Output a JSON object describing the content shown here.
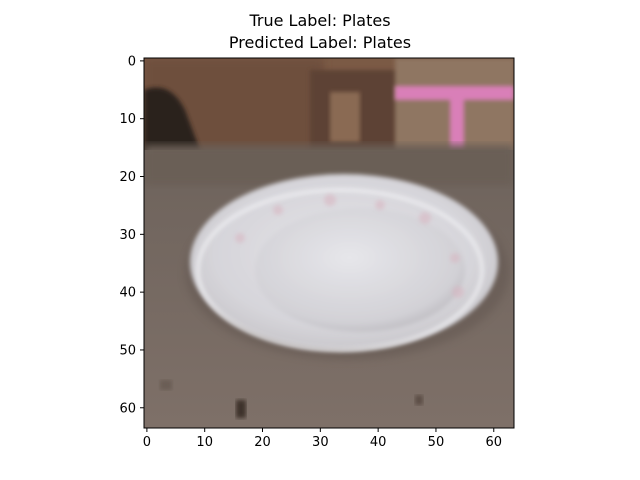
{
  "figure": {
    "title_line1": "True Label: Plates",
    "title_line2": "Predicted Label: Plates"
  },
  "axes": {
    "x_ticks": [
      0,
      10,
      20,
      30,
      40,
      50,
      60
    ],
    "y_ticks": [
      0,
      10,
      20,
      30,
      40,
      50,
      60
    ],
    "image_extent": [
      -0.5,
      63.5
    ]
  },
  "image": {
    "subject": "white-ceramic-plate",
    "colors": {
      "wall": "#7b5a45",
      "table": "#7d7068",
      "plate": "#dcdce0",
      "plate_shadow": "#b8b6bb",
      "pink_object": "#d97fb8",
      "dark_corner": "#2a211e"
    }
  }
}
